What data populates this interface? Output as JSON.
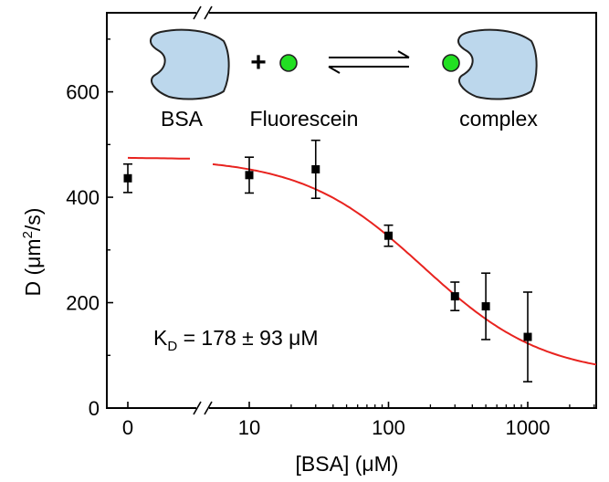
{
  "chart_data": {
    "type": "scatter",
    "xlabel": "[BSA] (μM)",
    "ylabel_parts": [
      "D (μm",
      "2",
      "/s)"
    ],
    "x_scale": "log-with-break",
    "x_break_between": [
      0,
      10
    ],
    "x_ticks": [
      {
        "value": 0,
        "label": "0"
      },
      {
        "value": 10,
        "label": "10"
      },
      {
        "value": 100,
        "label": "100"
      },
      {
        "value": 1000,
        "label": "1000"
      }
    ],
    "xlim": [
      0,
      3000
    ],
    "ylim": [
      0,
      750
    ],
    "y_ticks": [
      0,
      200,
      400,
      600
    ],
    "grid": false,
    "points": [
      {
        "x": 0,
        "y": 436,
        "err": 27
      },
      {
        "x": 10,
        "y": 442,
        "err": 34
      },
      {
        "x": 30,
        "y": 453,
        "err": 55
      },
      {
        "x": 100,
        "y": 327,
        "err": 20
      },
      {
        "x": 300,
        "y": 212,
        "err": 27
      },
      {
        "x": 500,
        "y": 193,
        "err": 63
      },
      {
        "x": 1000,
        "y": 135,
        "err": 85
      }
    ],
    "fit": {
      "color": "#e8231f",
      "model": "binding",
      "D_free": 475,
      "D_bound": 60,
      "Kd": 178
    },
    "marker_color": "#000000",
    "annotation": {
      "prefix": "K",
      "subscript": "D",
      "text": " = 178 ± 93 μM"
    }
  },
  "scheme": {
    "protein_label": "BSA",
    "plus": "+",
    "ligand_label": "Fluorescein",
    "complex_label": "complex",
    "protein_color": "#bcd7ec",
    "ligand_color": "#22e022"
  }
}
